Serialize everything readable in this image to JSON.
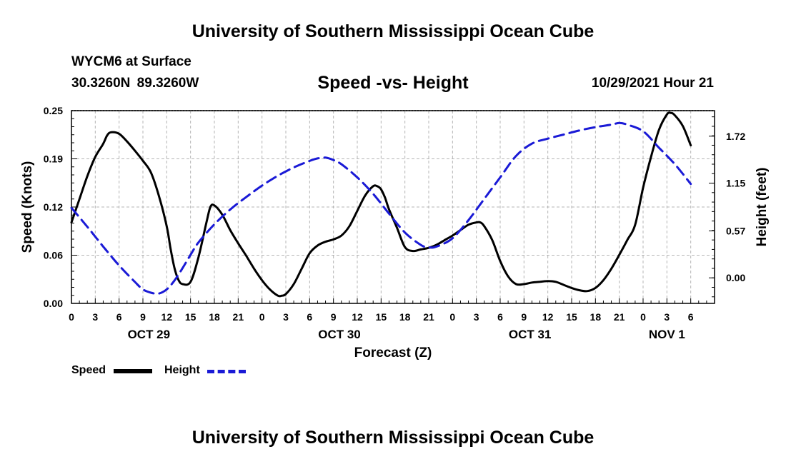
{
  "header": {
    "title": "University of Southern Mississippi Ocean Cube",
    "station": "WYCM6 at Surface",
    "coords": "30.3260N  89.3260W",
    "chart_title": "Speed -vs- Height",
    "date": "10/29/2021 Hour 21"
  },
  "footer": {
    "title": "University of Southern Mississippi Ocean Cube"
  },
  "legend": {
    "speed": "Speed",
    "height": "Height"
  },
  "colors": {
    "speed": "#000000",
    "height": "#1a1ad6",
    "grid": "#b4b4b4"
  },
  "chart_data": {
    "type": "line",
    "title": "Speed -vs- Height",
    "xlabel": "Forecast (Z)",
    "ylabel": "Speed (Knots)",
    "y2label": "Height (feet)",
    "grid": true,
    "x_range": [
      0,
      81
    ],
    "x_ticks": [
      {
        "x": 0,
        "label": "0"
      },
      {
        "x": 3,
        "label": "3"
      },
      {
        "x": 6,
        "label": "6"
      },
      {
        "x": 9,
        "label": "9"
      },
      {
        "x": 12,
        "label": "12"
      },
      {
        "x": 15,
        "label": "15"
      },
      {
        "x": 18,
        "label": "18"
      },
      {
        "x": 21,
        "label": "21"
      },
      {
        "x": 24,
        "label": "0"
      },
      {
        "x": 27,
        "label": "3"
      },
      {
        "x": 30,
        "label": "6"
      },
      {
        "x": 33,
        "label": "9"
      },
      {
        "x": 36,
        "label": "12"
      },
      {
        "x": 39,
        "label": "15"
      },
      {
        "x": 42,
        "label": "18"
      },
      {
        "x": 45,
        "label": "21"
      },
      {
        "x": 48,
        "label": "0"
      },
      {
        "x": 51,
        "label": "3"
      },
      {
        "x": 54,
        "label": "6"
      },
      {
        "x": 57,
        "label": "9"
      },
      {
        "x": 60,
        "label": "12"
      },
      {
        "x": 63,
        "label": "15"
      },
      {
        "x": 66,
        "label": "18"
      },
      {
        "x": 69,
        "label": "21"
      },
      {
        "x": 72,
        "label": "0"
      },
      {
        "x": 75,
        "label": "3"
      },
      {
        "x": 78,
        "label": "6"
      }
    ],
    "day_labels": [
      {
        "x": 9.75,
        "label": "OCT 29"
      },
      {
        "x": 33.75,
        "label": "OCT 30"
      },
      {
        "x": 57.75,
        "label": "OCT 31"
      },
      {
        "x": 75,
        "label": "NOV 1"
      }
    ],
    "y_ticks": [
      {
        "value": 0.0,
        "label": "0.00"
      },
      {
        "value": 0.0625,
        "label": "0.06"
      },
      {
        "value": 0.125,
        "label": "0.12"
      },
      {
        "value": 0.1875,
        "label": "0.19"
      },
      {
        "value": 0.25,
        "label": "0.25"
      }
    ],
    "ylim": [
      0,
      0.25
    ],
    "y2_ticks": [
      {
        "value": 0.0,
        "label": "0.00"
      },
      {
        "value": 0.57,
        "label": "0.57"
      },
      {
        "value": 1.15,
        "label": "1.15"
      },
      {
        "value": 1.72,
        "label": "1.72"
      }
    ],
    "y2lim": [
      -0.31,
      2.03
    ],
    "series": [
      {
        "name": "Speed",
        "axis": "left",
        "style": "solid",
        "x": [
          0,
          1,
          2,
          3,
          4,
          4.5,
          5,
          6,
          7,
          8,
          9,
          10,
          11,
          12,
          12.5,
          13,
          13.5,
          14,
          15,
          16,
          17,
          17.5,
          18,
          19,
          20,
          21,
          22,
          23,
          24,
          25,
          26,
          26.5,
          27,
          28,
          29,
          30,
          31,
          32,
          33,
          34,
          35,
          36,
          37,
          38,
          38.5,
          39,
          39.5,
          40,
          41,
          42,
          43,
          44,
          45,
          46,
          47,
          48,
          49,
          50,
          51,
          51.5,
          52,
          53,
          54,
          55,
          56,
          57,
          58,
          59,
          60,
          61,
          62,
          63,
          64,
          65,
          66,
          67,
          68,
          69,
          70,
          71,
          72,
          73,
          74,
          75,
          75.5,
          76,
          77,
          78
        ],
        "values": [
          0.105,
          0.135,
          0.165,
          0.19,
          0.207,
          0.218,
          0.222,
          0.22,
          0.21,
          0.198,
          0.185,
          0.17,
          0.14,
          0.1,
          0.07,
          0.045,
          0.03,
          0.025,
          0.028,
          0.06,
          0.105,
          0.125,
          0.127,
          0.115,
          0.095,
          0.078,
          0.062,
          0.045,
          0.03,
          0.018,
          0.01,
          0.01,
          0.012,
          0.025,
          0.045,
          0.065,
          0.075,
          0.08,
          0.083,
          0.088,
          0.1,
          0.12,
          0.14,
          0.152,
          0.152,
          0.148,
          0.137,
          0.122,
          0.098,
          0.073,
          0.068,
          0.07,
          0.072,
          0.076,
          0.082,
          0.088,
          0.095,
          0.102,
          0.105,
          0.105,
          0.1,
          0.082,
          0.055,
          0.035,
          0.025,
          0.025,
          0.027,
          0.028,
          0.029,
          0.028,
          0.024,
          0.02,
          0.017,
          0.016,
          0.02,
          0.03,
          0.045,
          0.063,
          0.082,
          0.102,
          0.15,
          0.19,
          0.225,
          0.245,
          0.247,
          0.244,
          0.23,
          0.205
        ]
      },
      {
        "name": "Height",
        "axis": "right",
        "style": "dashed",
        "x": [
          0,
          2,
          4,
          6,
          8,
          9,
          10,
          11,
          12,
          13,
          14,
          15,
          16,
          18,
          20,
          22,
          24,
          26,
          28,
          30,
          31,
          32,
          33,
          34,
          36,
          38,
          40,
          42,
          44,
          45,
          46,
          48,
          50,
          52,
          54,
          56,
          58,
          60,
          62,
          64,
          66,
          68,
          69,
          70,
          72,
          74,
          76,
          78
        ],
        "values": [
          0.85,
          0.62,
          0.38,
          0.15,
          -0.05,
          -0.14,
          -0.18,
          -0.19,
          -0.14,
          -0.03,
          0.12,
          0.28,
          0.43,
          0.65,
          0.83,
          0.98,
          1.12,
          1.24,
          1.34,
          1.42,
          1.45,
          1.46,
          1.43,
          1.38,
          1.22,
          1.02,
          0.78,
          0.55,
          0.4,
          0.37,
          0.38,
          0.48,
          0.7,
          0.96,
          1.22,
          1.48,
          1.63,
          1.69,
          1.74,
          1.79,
          1.83,
          1.86,
          1.88,
          1.86,
          1.78,
          1.58,
          1.38,
          1.14
        ]
      }
    ]
  }
}
